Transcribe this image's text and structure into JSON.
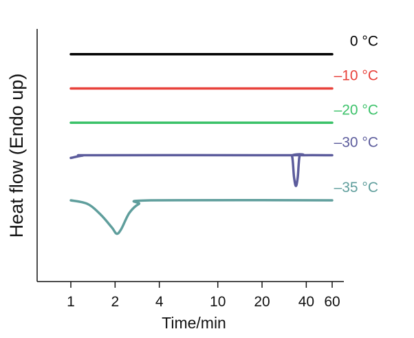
{
  "chart_data": {
    "type": "line",
    "title": "",
    "xlabel": "Time/min",
    "ylabel": "Heat flow (Endo up)",
    "x_scale": "log",
    "xlim": [
      0.7,
      80
    ],
    "ylim": [
      -7,
      7
    ],
    "x_ticks": [
      1,
      2,
      4,
      10,
      20,
      40,
      60
    ],
    "x_tick_labels": [
      "1",
      "2",
      "4",
      "10",
      "20",
      "40",
      "60"
    ],
    "grid": false,
    "legend": "inline labels at the right end of each trace",
    "series": [
      {
        "name": "0 °C",
        "label": "0 °C",
        "color": "#000000",
        "baseline": 5.6,
        "points": [
          [
            1,
            5.6
          ],
          [
            60,
            5.6
          ]
        ]
      },
      {
        "name": "-10 °C",
        "label": "–10 °C",
        "color": "#e8413a",
        "baseline": 3.7,
        "points": [
          [
            1,
            3.7
          ],
          [
            60,
            3.7
          ]
        ]
      },
      {
        "name": "-20 °C",
        "label": "–20 °C",
        "color": "#3cc26a",
        "baseline": 1.8,
        "points": [
          [
            1,
            1.8
          ],
          [
            60,
            1.8
          ]
        ]
      },
      {
        "name": "-30 °C",
        "label": "–30 °C",
        "color": "#5c5c9c",
        "baseline": 0,
        "points": [
          [
            1,
            -0.15
          ],
          [
            1.2,
            -0.02
          ],
          [
            1.5,
            0.0
          ],
          [
            30,
            0.0
          ],
          [
            32,
            -0.05
          ],
          [
            33,
            -1.2
          ],
          [
            34,
            -1.7
          ],
          [
            35,
            -1.2
          ],
          [
            36,
            -0.05
          ],
          [
            38,
            0.0
          ],
          [
            60,
            0.0
          ]
        ]
      },
      {
        "name": "-35 °C",
        "label": "–35 °C",
        "color": "#5f9e9c",
        "baseline": -2.5,
        "points": [
          [
            1,
            -2.5
          ],
          [
            1.3,
            -2.7
          ],
          [
            1.6,
            -3.3
          ],
          [
            1.9,
            -4.0
          ],
          [
            2.05,
            -4.35
          ],
          [
            2.2,
            -4.1
          ],
          [
            2.5,
            -3.2
          ],
          [
            2.9,
            -2.7
          ],
          [
            3.5,
            -2.5
          ],
          [
            60,
            -2.5
          ]
        ]
      }
    ]
  }
}
